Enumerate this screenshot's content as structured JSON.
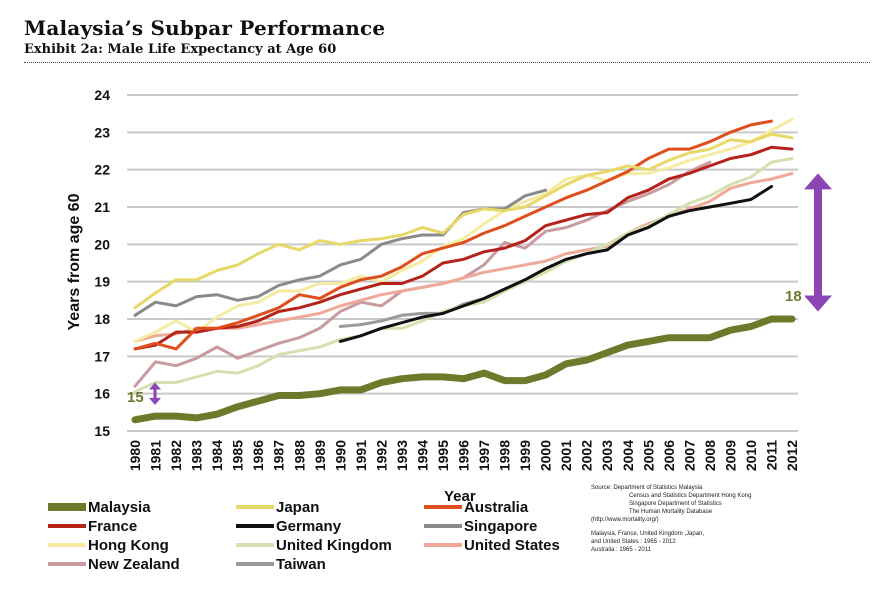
{
  "header": {
    "title": "Malaysia’s Subpar Performance",
    "subtitle": "Exhibit 2a: Male Life Expectancy at Age 60"
  },
  "chart_data": {
    "type": "line",
    "ylabel": "Years from age 60",
    "xlabel": "Year",
    "ylim": [
      15,
      24
    ],
    "yticks": [
      15,
      16,
      17,
      18,
      19,
      20,
      21,
      22,
      23,
      24
    ],
    "grid": true,
    "legend_position": "bottom",
    "x": [
      "1980",
      "1981",
      "1982",
      "1983",
      "1984",
      "1985",
      "1986",
      "1987",
      "1988",
      "1989",
      "1990",
      "1991",
      "1992",
      "1993",
      "1994",
      "1995",
      "1996",
      "1997",
      "1998",
      "1999",
      "2000",
      "2001",
      "2002",
      "2003",
      "2004",
      "2005",
      "2006",
      "2007",
      "2008",
      "2009",
      "2010",
      "2011",
      "2012"
    ],
    "series": [
      {
        "name": "Malaysia",
        "color": "#6b7a2b",
        "width": 7,
        "values": [
          15.3,
          15.4,
          15.4,
          15.35,
          15.45,
          15.65,
          15.8,
          15.95,
          15.95,
          16.0,
          16.1,
          16.1,
          16.3,
          16.4,
          16.45,
          16.45,
          16.4,
          16.55,
          16.35,
          16.35,
          16.5,
          16.8,
          16.9,
          17.1,
          17.3,
          17.4,
          17.5,
          17.5,
          17.5,
          17.7,
          17.8,
          18.0,
          18.0
        ]
      },
      {
        "name": "Japan",
        "color": "#e8d868",
        "width": 3,
        "values": [
          18.3,
          18.7,
          19.05,
          19.05,
          19.3,
          19.45,
          19.75,
          20.0,
          19.85,
          20.1,
          20.0,
          20.1,
          20.15,
          20.25,
          20.45,
          20.3,
          20.8,
          20.95,
          20.9,
          21.0,
          21.3,
          21.6,
          21.85,
          21.95,
          22.1,
          22.0,
          22.25,
          22.45,
          22.55,
          22.8,
          22.75,
          22.95,
          22.85
        ]
      },
      {
        "name": "Australia",
        "color": "#dd4f1c",
        "width": 3,
        "values": [
          17.2,
          17.35,
          17.2,
          17.75,
          17.75,
          17.9,
          18.1,
          18.3,
          18.65,
          18.55,
          18.85,
          19.05,
          19.15,
          19.4,
          19.75,
          19.9,
          20.05,
          20.3,
          20.5,
          20.75,
          21.0,
          21.25,
          21.45,
          21.7,
          21.95,
          22.3,
          22.55,
          22.55,
          22.75,
          23.0,
          23.2,
          23.3,
          null
        ]
      },
      {
        "name": "France",
        "color": "#b4231a",
        "width": 3,
        "values": [
          17.2,
          17.3,
          17.65,
          17.65,
          17.75,
          17.8,
          17.95,
          18.2,
          18.3,
          18.45,
          18.65,
          18.8,
          18.95,
          18.95,
          19.15,
          19.5,
          19.6,
          19.8,
          19.9,
          20.1,
          20.5,
          20.65,
          20.8,
          20.85,
          21.25,
          21.45,
          21.75,
          21.9,
          22.1,
          22.3,
          22.4,
          22.6,
          22.55
        ]
      },
      {
        "name": "Germany",
        "color": "#111111",
        "width": 3,
        "values": [
          null,
          null,
          null,
          null,
          null,
          null,
          null,
          null,
          null,
          null,
          17.4,
          17.55,
          17.75,
          17.9,
          18.05,
          18.15,
          18.35,
          18.55,
          18.8,
          19.05,
          19.35,
          19.6,
          19.75,
          19.85,
          20.25,
          20.45,
          20.75,
          20.9,
          21.0,
          21.1,
          21.2,
          21.55,
          null
        ]
      },
      {
        "name": "Singapore",
        "color": "#8a8a8a",
        "width": 3,
        "values": [
          18.1,
          18.45,
          18.35,
          18.6,
          18.65,
          18.5,
          18.6,
          18.9,
          19.05,
          19.15,
          19.45,
          19.6,
          20.0,
          20.15,
          20.25,
          20.25,
          20.85,
          20.95,
          20.95,
          21.3,
          21.45,
          null,
          null,
          null,
          null,
          null,
          null,
          null,
          null,
          null,
          null,
          null,
          null
        ]
      },
      {
        "name": "Hong Kong",
        "color": "#f5eba2",
        "width": 3,
        "values": [
          17.4,
          17.65,
          17.95,
          17.65,
          18.05,
          18.35,
          18.45,
          18.75,
          18.75,
          18.95,
          18.95,
          19.15,
          19.0,
          19.3,
          19.55,
          19.95,
          20.15,
          20.55,
          20.9,
          21.15,
          21.35,
          21.75,
          21.85,
          21.7,
          21.9,
          21.9,
          22.05,
          22.25,
          22.4,
          22.55,
          22.75,
          23.05,
          23.35
        ]
      },
      {
        "name": "United Kingdom",
        "color": "#d4e0ae",
        "width": 3,
        "values": [
          16.05,
          16.3,
          16.3,
          16.45,
          16.6,
          16.55,
          16.75,
          17.05,
          17.15,
          17.25,
          17.45,
          17.55,
          17.75,
          17.75,
          17.95,
          18.2,
          18.35,
          18.45,
          18.75,
          19.0,
          19.25,
          19.55,
          19.75,
          20.0,
          20.3,
          20.5,
          20.8,
          21.1,
          21.3,
          21.6,
          21.8,
          22.2,
          22.3
        ]
      },
      {
        "name": "United States",
        "color": "#f0a898",
        "width": 3,
        "values": [
          17.4,
          17.55,
          17.6,
          17.75,
          17.75,
          17.75,
          17.85,
          17.95,
          18.05,
          18.15,
          18.35,
          18.5,
          18.65,
          18.75,
          18.85,
          18.95,
          19.1,
          19.25,
          19.35,
          19.45,
          19.55,
          19.75,
          19.85,
          19.95,
          20.3,
          20.55,
          20.75,
          20.95,
          21.15,
          21.5,
          21.65,
          21.75,
          21.9
        ]
      },
      {
        "name": "New Zealand",
        "color": "#c99aa0",
        "width": 3,
        "values": [
          16.2,
          16.85,
          16.75,
          16.95,
          17.25,
          16.95,
          17.15,
          17.35,
          17.5,
          17.75,
          18.2,
          18.45,
          18.35,
          18.75,
          18.85,
          18.95,
          19.1,
          19.45,
          20.05,
          19.9,
          20.35,
          20.45,
          20.65,
          20.9,
          21.15,
          21.35,
          21.6,
          21.95,
          22.2,
          null,
          null,
          null,
          null
        ]
      },
      {
        "name": "Taiwan",
        "color": "#9a9a9a",
        "width": 3,
        "values": [
          null,
          null,
          null,
          null,
          null,
          null,
          null,
          null,
          null,
          null,
          17.8,
          17.85,
          17.95,
          18.1,
          18.15,
          18.15,
          18.4,
          18.55,
          18.8,
          19.05,
          19.35,
          null,
          null,
          null,
          null,
          null,
          null,
          null,
          null,
          null,
          null,
          null,
          null
        ]
      }
    ],
    "legend_order": [
      "Malaysia",
      "Japan",
      "Australia",
      "France",
      "Germany",
      "Singapore",
      "Hong Kong",
      "United Kingdom",
      "United States",
      "New Zealand",
      "Taiwan"
    ],
    "annotations": [
      {
        "text": "15",
        "at_year": "1980",
        "range": [
          15.7,
          16.3
        ],
        "color": "#8b45b5"
      },
      {
        "text": "18",
        "at_year": "2012",
        "range": [
          18.2,
          21.9
        ],
        "color": "#8b45b5"
      }
    ]
  },
  "source_note": {
    "lines": [
      "Source: Department of Statistics Malaysia",
      "Census and Statistics Department Hong Kong",
      "Singapore Department of Statistics",
      "The Human Mortality Database",
      "(http://www.mortality.org/)",
      "Malaysia, France, United Kingdom ,Japan,",
      "and United States : 1965 - 2012",
      "Australia : 1965 - 2011"
    ]
  }
}
